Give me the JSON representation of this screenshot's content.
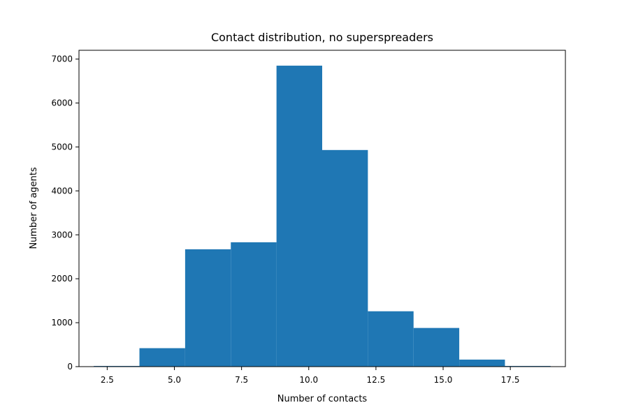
{
  "chart_data": {
    "type": "bar",
    "title": "Contact distribution, no superspreaders",
    "xlabel": "Number of contacts",
    "ylabel": "Number of agents",
    "xlim": [
      1.45,
      19.55
    ],
    "ylim": [
      0,
      7200
    ],
    "bin_edges": [
      2.0,
      3.7,
      5.4,
      7.1,
      8.8,
      10.5,
      12.2,
      13.9,
      15.6,
      17.3,
      19.0
    ],
    "values": [
      15,
      420,
      2670,
      2830,
      6850,
      4930,
      1260,
      880,
      160,
      15
    ],
    "x_ticks": [
      2.5,
      5.0,
      7.5,
      10.0,
      12.5,
      15.0,
      17.5
    ],
    "x_tick_labels": [
      "2.5",
      "5.0",
      "7.5",
      "10.0",
      "12.5",
      "15.0",
      "17.5"
    ],
    "y_ticks": [
      0,
      1000,
      2000,
      3000,
      4000,
      5000,
      6000,
      7000
    ],
    "y_tick_labels": [
      "0",
      "1000",
      "2000",
      "3000",
      "4000",
      "5000",
      "6000",
      "7000"
    ],
    "bar_color": "#1f77b4",
    "grid": false,
    "legend": "none"
  }
}
